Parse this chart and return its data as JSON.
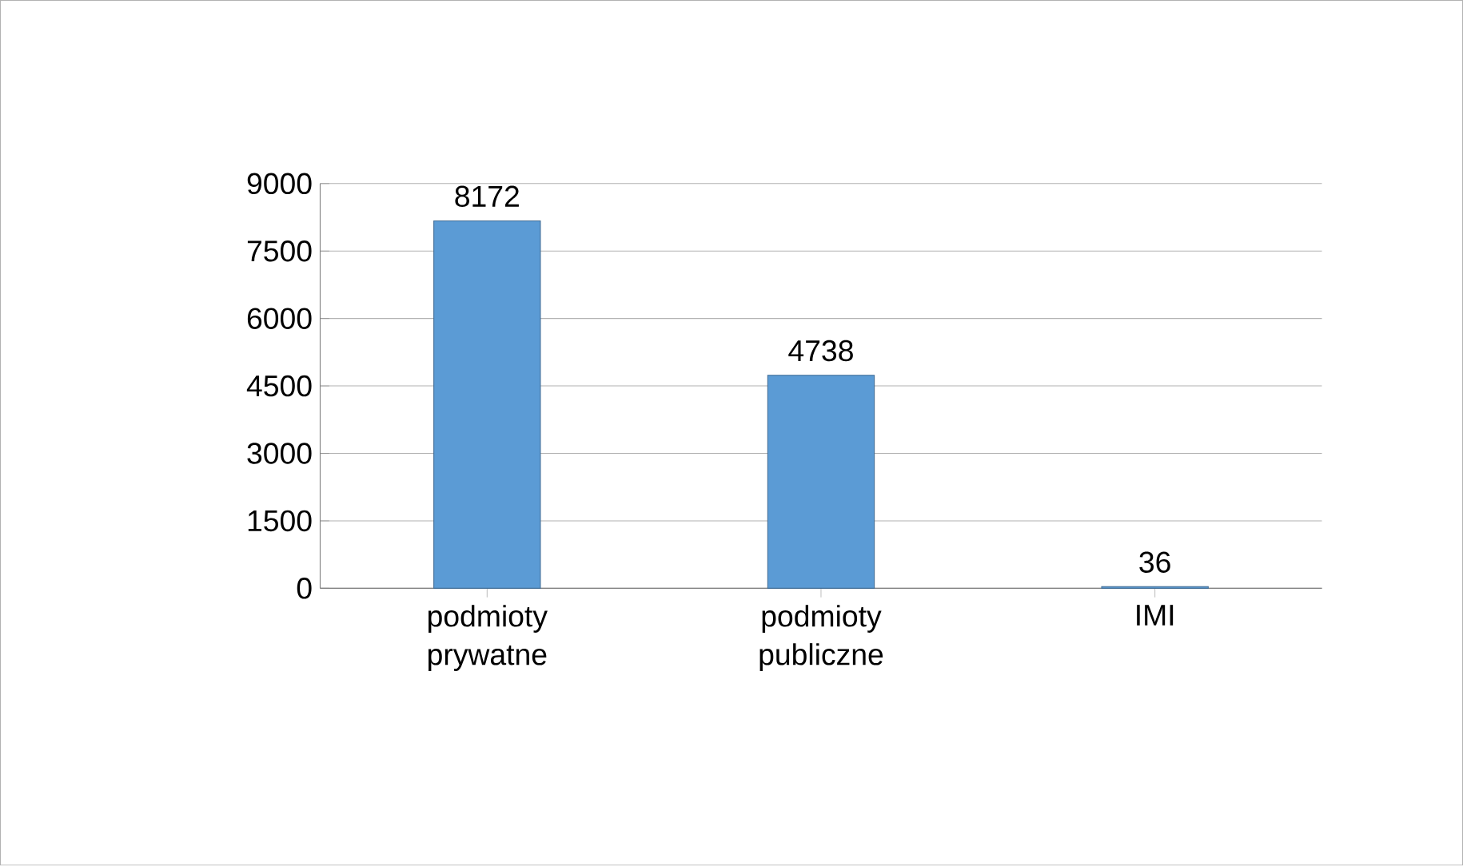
{
  "chart_data": {
    "type": "bar",
    "categories": [
      "podmioty prywatne",
      "podmioty publiczne",
      "IMI"
    ],
    "values": [
      8172,
      4738,
      36
    ],
    "color": "#5b9bd5",
    "ylim": [
      0,
      9000
    ],
    "yticks": [
      0,
      1500,
      3000,
      4500,
      6000,
      7500,
      9000
    ],
    "grid": "y",
    "data_labels": true
  }
}
